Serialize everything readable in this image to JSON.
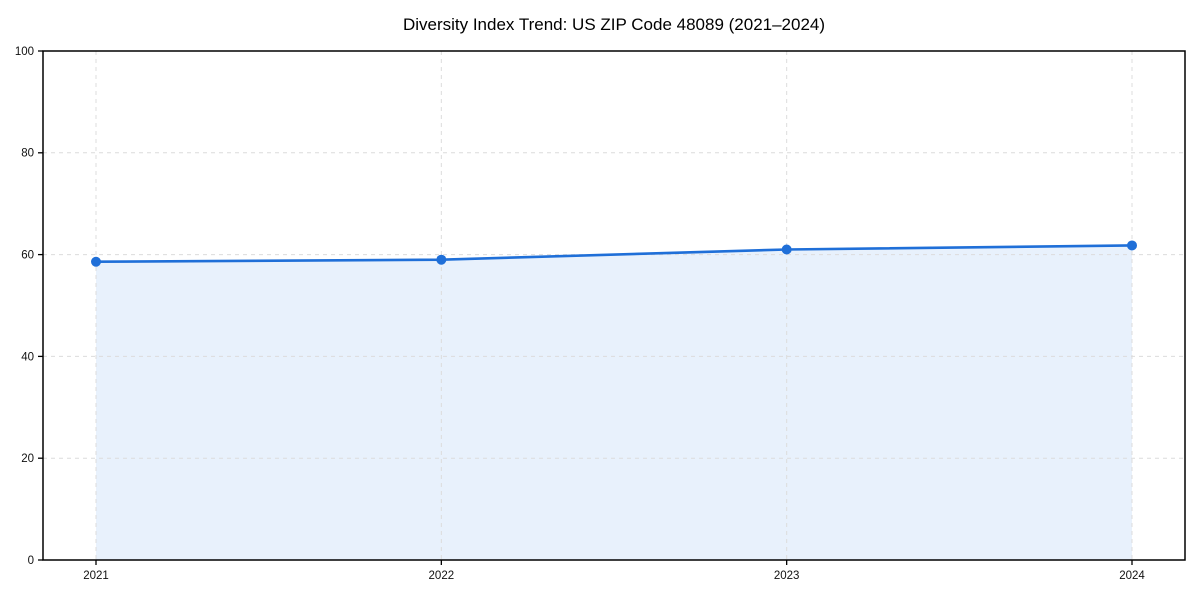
{
  "chart_data": {
    "type": "area",
    "title": "Diversity Index Trend: US ZIP Code 48089 (2021–2024)",
    "xlabel": "",
    "ylabel": "",
    "categories": [
      "2021",
      "2022",
      "2023",
      "2024"
    ],
    "series": [
      {
        "name": "Diversity Index",
        "values": [
          58.6,
          59.0,
          61.0,
          61.8
        ]
      }
    ],
    "ylim": [
      0,
      100
    ],
    "yticks": [
      0,
      20,
      40,
      60,
      80,
      100
    ],
    "grid": true,
    "grid_style": "dashed",
    "legend_position": "none",
    "marker": "circle",
    "colors": {
      "line": "#1f6fd8",
      "marker": "#1f6fd8",
      "fill": "#e8f1fc",
      "grid": "#dcdcdc",
      "spine": "#000000",
      "tick_label": "#111111",
      "title": "#000000",
      "background": "#ffffff"
    }
  }
}
